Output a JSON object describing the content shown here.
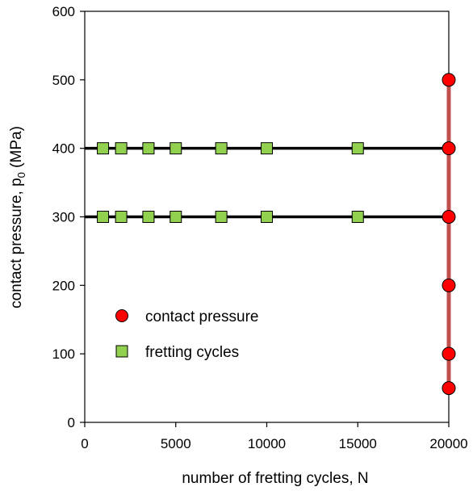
{
  "chart_data": {
    "type": "scatter",
    "title": "",
    "xlabel": "number of fretting cycles, N",
    "ylabel_main": "contact pressure, p",
    "ylabel_sub": "0",
    "ylabel_unit": " (MPa)",
    "xlim": [
      0,
      20000
    ],
    "ylim": [
      0,
      600
    ],
    "x_ticks": [
      "0",
      "5000",
      "10000",
      "15000",
      "20000"
    ],
    "y_ticks": [
      "0",
      "100",
      "200",
      "300",
      "400",
      "500",
      "600"
    ],
    "grid": false,
    "legend_position": "lower-left",
    "series": [
      {
        "name": "contact pressure",
        "marker": "circle",
        "color": "#ff0000",
        "x": [
          20000,
          20000,
          20000,
          20000,
          20000,
          20000
        ],
        "y": [
          50,
          100,
          200,
          300,
          400,
          500
        ]
      },
      {
        "name": "fretting cycles",
        "marker": "square",
        "color": "#92d050",
        "x": [
          1000,
          2000,
          3500,
          5000,
          7500,
          10000,
          15000,
          1000,
          2000,
          3500,
          5000,
          7500,
          10000,
          15000
        ],
        "y": [
          300,
          300,
          300,
          300,
          300,
          300,
          300,
          400,
          400,
          400,
          400,
          400,
          400,
          400
        ]
      }
    ],
    "reference_lines": {
      "horizontal_y": [
        300,
        400
      ],
      "horizontal_color": "#000000",
      "vertical_x": 20000,
      "vertical_y_range": [
        50,
        500
      ],
      "vertical_color": "#c0504d"
    }
  }
}
